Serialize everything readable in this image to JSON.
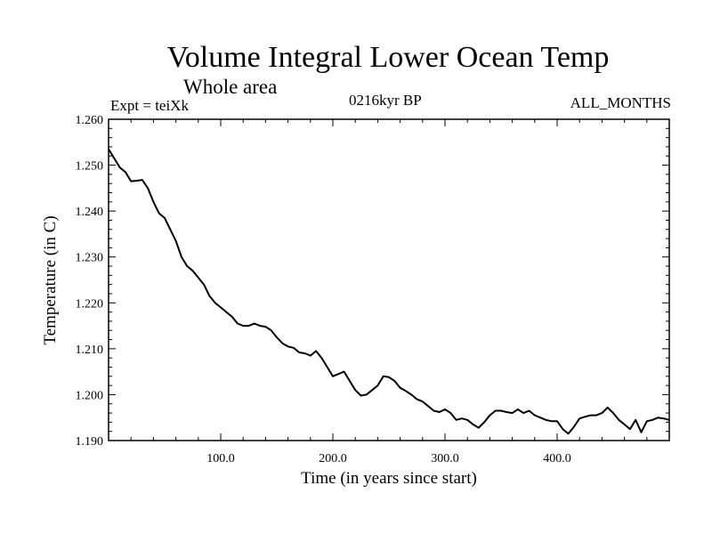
{
  "chart_data": {
    "type": "line",
    "title": "Volume Integral Lower Ocean Temp",
    "subtitle": "Whole area",
    "annotations": {
      "left": "Expt = teiXk",
      "center": "0216kyr BP",
      "right": "ALL_MONTHS"
    },
    "xlabel": "Time (in years since start)",
    "ylabel": "Temperature (in C)",
    "xlim": [
      0,
      500
    ],
    "ylim": [
      1.19,
      1.26
    ],
    "xticks": [
      100,
      200,
      300,
      400
    ],
    "xtick_labels": [
      "100.0",
      "200.0",
      "300.0",
      "400.0"
    ],
    "yticks": [
      1.19,
      1.2,
      1.21,
      1.22,
      1.23,
      1.24,
      1.25,
      1.26
    ],
    "ytick_labels": [
      "1.190",
      "1.200",
      "1.210",
      "1.220",
      "1.230",
      "1.240",
      "1.250",
      "1.260"
    ],
    "grid": false,
    "series": [
      {
        "x": [
          0,
          5,
          10,
          15,
          20,
          25,
          30,
          35,
          40,
          45,
          50,
          55,
          60,
          65,
          70,
          75,
          80,
          85,
          90,
          95,
          100,
          105,
          110,
          115,
          120,
          125,
          130,
          135,
          140,
          145,
          150,
          155,
          160,
          165,
          170,
          175,
          180,
          185,
          190,
          195,
          200,
          205,
          210,
          215,
          220,
          225,
          230,
          235,
          240,
          245,
          250,
          255,
          260,
          265,
          270,
          275,
          280,
          285,
          290,
          295,
          300,
          305,
          310,
          315,
          320,
          325,
          330,
          335,
          340,
          345,
          350,
          355,
          360,
          365,
          370,
          375,
          380,
          385,
          390,
          395,
          400,
          405,
          410,
          415,
          420,
          425,
          430,
          435,
          440,
          445,
          450,
          455,
          460,
          465,
          470,
          475,
          480,
          485,
          490,
          495,
          500
        ],
        "y": [
          1.2535,
          1.2515,
          1.2495,
          1.2485,
          1.2465,
          1.2466,
          1.2468,
          1.245,
          1.242,
          1.2395,
          1.2385,
          1.236,
          1.2335,
          1.23,
          1.228,
          1.227,
          1.2255,
          1.224,
          1.2215,
          1.22,
          1.219,
          1.218,
          1.217,
          1.2155,
          1.215,
          1.215,
          1.2155,
          1.215,
          1.2148,
          1.214,
          1.2125,
          1.2112,
          1.2105,
          1.2102,
          1.2092,
          1.209,
          1.2085,
          1.2095,
          1.208,
          1.206,
          1.204,
          1.2045,
          1.205,
          1.203,
          1.201,
          1.1998,
          1.2,
          1.201,
          1.202,
          1.204,
          1.2038,
          1.203,
          1.2015,
          1.2008,
          1.2,
          1.199,
          1.1985,
          1.1975,
          1.1965,
          1.1962,
          1.1968,
          1.196,
          1.1945,
          1.1948,
          1.1945,
          1.1935,
          1.1928,
          1.194,
          1.1955,
          1.1965,
          1.1965,
          1.1962,
          1.196,
          1.1968,
          1.196,
          1.1965,
          1.1955,
          1.195,
          1.1945,
          1.1942,
          1.1942,
          1.1925,
          1.1915,
          1.193,
          1.1948,
          1.1952,
          1.1955,
          1.1955,
          1.196,
          1.1972,
          1.196,
          1.1945,
          1.1935,
          1.1925,
          1.1945,
          1.1918,
          1.1942,
          1.1945,
          1.195,
          1.1948,
          1.1945
        ]
      }
    ]
  }
}
